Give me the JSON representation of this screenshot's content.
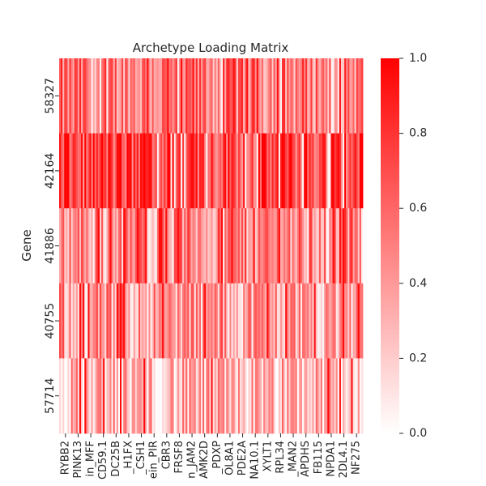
{
  "chart_data": {
    "type": "heatmap",
    "title": "Archetype Loading Matrix",
    "xlabel": "",
    "ylabel": "Gene",
    "rows": [
      "58327",
      "42164",
      "41886",
      "40755",
      "57714"
    ],
    "x_tick_labels": [
      "RYBB2",
      "PINK13",
      "in_MFF",
      "CD59.1",
      "DC25B",
      "_H1FX",
      "_CSH1",
      "ein_PIR",
      "CBR3",
      "FRSF8",
      "n_JAM2",
      "AMK2D",
      "_PDXP",
      "OL8A1",
      "PDE2A",
      "NA10.1",
      "XYLT1",
      "RPL34",
      "_MAN2",
      "APDHS",
      "FB115",
      "NPDA1",
      "2DL4.1",
      "NF275"
    ],
    "n_columns": 180,
    "row_mean_levels": [
      0.52,
      0.72,
      0.48,
      0.4,
      0.28
    ],
    "colormap": {
      "low": "#ffffff",
      "high": "#ff0000"
    },
    "colorbar": {
      "min": 0.0,
      "max": 1.0,
      "ticks": [
        "0.0",
        "0.2",
        "0.4",
        "0.6",
        "0.8",
        "1.0"
      ]
    }
  }
}
